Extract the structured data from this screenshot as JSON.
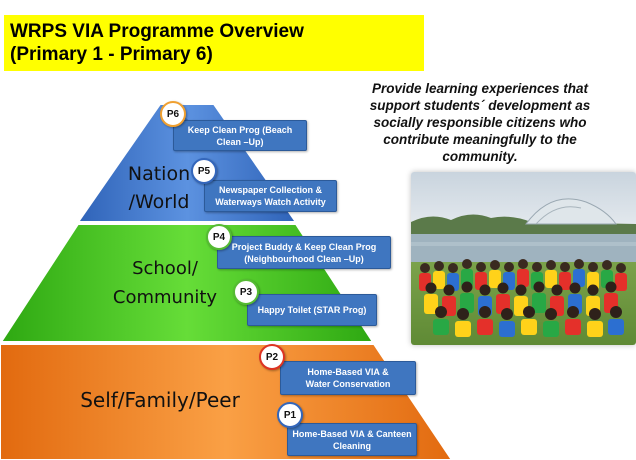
{
  "title": {
    "line1": "WRPS VIA Programme Overview",
    "line2": "(Primary 1 - Primary 6)"
  },
  "tagline": {
    "line1": "Provide learning experiences that",
    "line2": "support students´ development as",
    "line3": "socially responsible citizens who",
    "line4": "contribute meaningfully to the",
    "line5": "community."
  },
  "tiers": {
    "top": {
      "line1": "Nation",
      "line2": "/World",
      "color": "#4a7fd0"
    },
    "middle": {
      "line1": "School/",
      "line2": "Community",
      "color": "#44cc22"
    },
    "bottom": {
      "label": "Self/Family/Peer",
      "color": "#f58a1f"
    }
  },
  "programmes": [
    {
      "badge": "P6",
      "line1": "Keep Clean Prog (Beach",
      "line2": "Clean –Up)"
    },
    {
      "badge": "P5",
      "line1": "Newspaper Collection &",
      "line2": "Waterways Watch Activity"
    },
    {
      "badge": "P4",
      "line1": "Project Buddy & Keep Clean Prog",
      "line2": "(Neighbourhood Clean –Up)"
    },
    {
      "badge": "P3",
      "line1": "Happy Toilet (STAR Prog)",
      "line2": ""
    },
    {
      "badge": "P2",
      "line1": "Home-Based VIA &",
      "line2": "Water Conservation"
    },
    {
      "badge": "P1",
      "line1": "Home-Based VIA & Canteen",
      "line2": "Cleaning"
    }
  ],
  "colors": {
    "title_bg": "#ffff00",
    "box_blue": "#3f76c0",
    "badge_orange": "#f0a030",
    "badge_green": "#55bb33",
    "badge_red": "#dd3322",
    "badge_blue": "#3366bb"
  }
}
